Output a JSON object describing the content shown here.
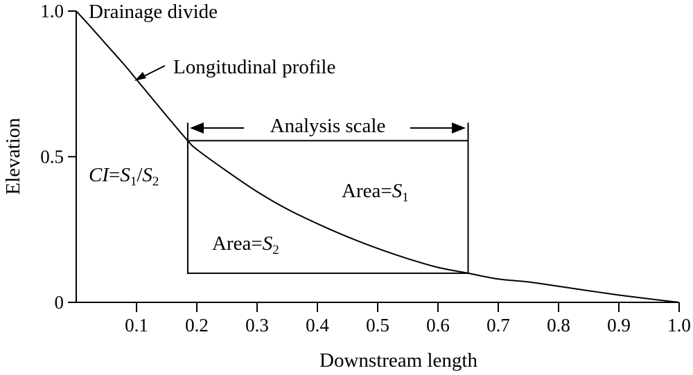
{
  "chart_data": {
    "type": "line",
    "xlabel": "Downstream length",
    "ylabel": "Elevation",
    "xlim": [
      0,
      1.0
    ],
    "ylim": [
      0,
      1.0
    ],
    "x_ticks": [
      {
        "value": 0.1,
        "label": "0.1"
      },
      {
        "value": 0.2,
        "label": "0.2"
      },
      {
        "value": 0.3,
        "label": "0.3"
      },
      {
        "value": 0.4,
        "label": "0.4"
      },
      {
        "value": 0.5,
        "label": "0.5"
      },
      {
        "value": 0.6,
        "label": "0.6"
      },
      {
        "value": 0.7,
        "label": "0.7"
      },
      {
        "value": 0.8,
        "label": "0.8"
      },
      {
        "value": 0.9,
        "label": "0.9"
      },
      {
        "value": 1.0,
        "label": "1.0"
      }
    ],
    "y_ticks": [
      {
        "value": 0,
        "label": "0"
      },
      {
        "value": 0.5,
        "label": "0.5"
      },
      {
        "value": 1.0,
        "label": "1.0"
      }
    ],
    "profile": {
      "x": [
        0,
        0.02,
        0.05,
        0.08,
        0.1,
        0.12,
        0.15,
        0.185,
        0.2,
        0.25,
        0.3,
        0.35,
        0.4,
        0.45,
        0.5,
        0.55,
        0.6,
        0.65,
        0.7,
        0.75,
        0.8,
        0.85,
        0.9,
        0.95,
        1.0
      ],
      "y": [
        1.0,
        0.955,
        0.885,
        0.815,
        0.765,
        0.715,
        0.64,
        0.555,
        0.525,
        0.45,
        0.38,
        0.32,
        0.27,
        0.225,
        0.185,
        0.15,
        0.12,
        0.1,
        0.08,
        0.07,
        0.055,
        0.04,
        0.025,
        0.012,
        0.0
      ]
    },
    "analysis_box": {
      "x0": 0.185,
      "x1": 0.65,
      "y0": 0.1,
      "y1": 0.555
    }
  },
  "annotations": {
    "drainage_divide": "Drainage divide",
    "longitudinal_profile": "Longitudinal profile",
    "analysis_scale": "Analysis scale",
    "ci_formula": {
      "ci": "CI",
      "eq": "=",
      "s": "S",
      "one": "1",
      "slash": "/",
      "two": "2"
    },
    "area_s1": {
      "prefix": "Area=",
      "s": "S",
      "sub": "1"
    },
    "area_s2": {
      "prefix": "Area=",
      "s": "S",
      "sub": "2"
    }
  }
}
